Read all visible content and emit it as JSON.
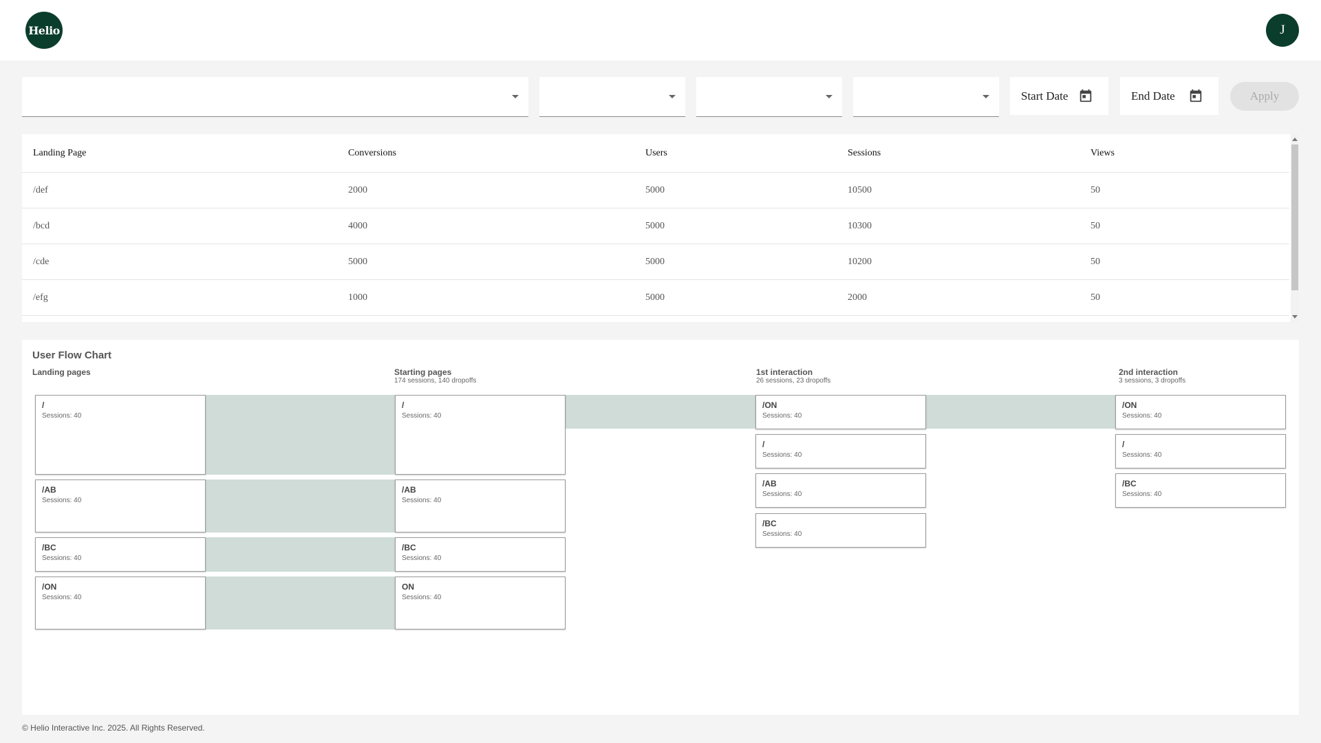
{
  "header": {
    "logo_text": "Helio",
    "avatar_initial": "J"
  },
  "filters": {
    "selects": [
      "",
      "",
      "",
      ""
    ],
    "start_date_label": "Start Date",
    "end_date_label": "End Date",
    "apply_label": "Apply"
  },
  "table": {
    "columns": [
      "Landing Page",
      "Conversions",
      "Users",
      "Sessions",
      "Views"
    ],
    "rows": [
      [
        "/def",
        "2000",
        "5000",
        "10500",
        "50"
      ],
      [
        "/bcd",
        "4000",
        "5000",
        "10300",
        "50"
      ],
      [
        "/cde",
        "5000",
        "5000",
        "10200",
        "50"
      ],
      [
        "/efg",
        "1000",
        "5000",
        "2000",
        "50"
      ]
    ]
  },
  "flow": {
    "title": "User Flow Chart",
    "columns": [
      {
        "name": "Landing pages",
        "summary": "",
        "nodes": [
          {
            "label": "/",
            "sessions": "Sessions: 40"
          },
          {
            "label": "/AB",
            "sessions": "Sessions: 40"
          },
          {
            "label": "/BC",
            "sessions": "Sessions: 40"
          },
          {
            "label": "/ON",
            "sessions": "Sessions: 40"
          }
        ]
      },
      {
        "name": "Starting pages",
        "summary": "174 sessions, 140 dropoffs",
        "nodes": [
          {
            "label": "/",
            "sessions": "Sessions: 40"
          },
          {
            "label": "/AB",
            "sessions": "Sessions: 40"
          },
          {
            "label": "/BC",
            "sessions": "Sessions: 40"
          },
          {
            "label": "ON",
            "sessions": "Sessions: 40"
          }
        ]
      },
      {
        "name": "1st interaction",
        "summary": "26 sessions, 23 dropoffs",
        "nodes": [
          {
            "label": "/ON",
            "sessions": "Sessions: 40"
          },
          {
            "label": "/",
            "sessions": "Sessions: 40"
          },
          {
            "label": "/AB",
            "sessions": "Sessions: 40"
          },
          {
            "label": "/BC",
            "sessions": "Sessions: 40"
          }
        ]
      },
      {
        "name": "2nd interaction",
        "summary": "3 sessions, 3 dropoffs",
        "nodes": [
          {
            "label": "/ON",
            "sessions": "Sessions: 40"
          },
          {
            "label": "/",
            "sessions": "Sessions: 40"
          },
          {
            "label": "/BC",
            "sessions": "Sessions: 40"
          }
        ]
      }
    ]
  },
  "footer": {
    "text": "© Helio Interactive Inc. 2025. All Rights Reserved."
  },
  "colors": {
    "brand": "#0b3d2c",
    "flow_link": "#cfdcd7"
  }
}
